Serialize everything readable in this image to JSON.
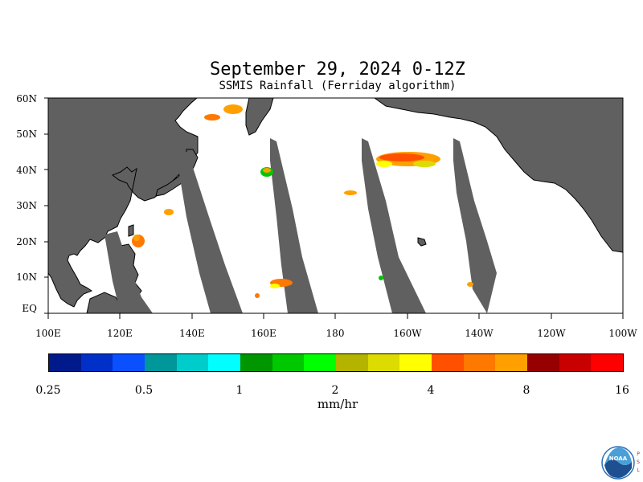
{
  "title": "September 29, 2024 0-12Z",
  "subtitle": "SSMIS Rainfall (Ferriday algorithm)",
  "map": {
    "lat_labels": [
      "60N",
      "50N",
      "40N",
      "30N",
      "20N",
      "10N",
      "EQ"
    ],
    "lon_labels": [
      "100E",
      "120E",
      "140E",
      "160E",
      "180",
      "160W",
      "140W",
      "120W",
      "100W"
    ],
    "colors": {
      "land": "#606060",
      "no_data": "#606060",
      "ocean": "#ffffff",
      "coast": "#000000"
    }
  },
  "colorbar": {
    "colors": [
      "#001a8c",
      "#0030c8",
      "#0a50ff",
      "#00979a",
      "#00cccc",
      "#00ffff",
      "#009600",
      "#00c800",
      "#00ff00",
      "#b4b400",
      "#dcdc00",
      "#ffff00",
      "#ff5000",
      "#ff7800",
      "#ffa000",
      "#960000",
      "#c80000",
      "#ff0000"
    ],
    "tick_labels": [
      "0.25",
      "0.5",
      "1",
      "2",
      "4",
      "8",
      "16"
    ],
    "units": "mm/hr"
  },
  "logo": {
    "text": "NOAA",
    "side_text": "PSL"
  }
}
